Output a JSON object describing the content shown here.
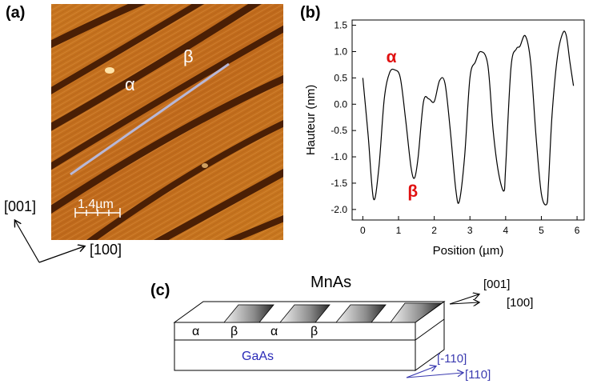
{
  "panels": {
    "a": {
      "label": "(a)",
      "scale_bar": "1.4µm",
      "alpha": "α",
      "beta": "β",
      "dir_y": "[001]",
      "dir_x": "[100]",
      "colors": {
        "background": "#c2701f",
        "trench": "#4a1f05",
        "line": "#b8b8d8"
      }
    },
    "b": {
      "label": "(b)"
    },
    "c": {
      "label": "(c)",
      "title": "MnAs",
      "substrate": "GaAs",
      "phases": [
        "α",
        "β",
        "α",
        "β"
      ],
      "dir_top_1": "[001]",
      "dir_top_2": "[100]",
      "dir_bottom_1": "[-110]",
      "dir_bottom_2": "[110]",
      "colors": {
        "gaas_text": "#2a2ab8",
        "dir_bottom": "#3a3ab0"
      }
    }
  },
  "chart_data": {
    "type": "line",
    "xlabel": "Position (µm)",
    "ylabel": "Hauteur (nm)",
    "xlim": [
      -0.3,
      6.2
    ],
    "ylim": [
      -2.2,
      1.6
    ],
    "xticks": [
      0,
      1,
      2,
      3,
      4,
      5,
      6
    ],
    "yticks": [
      -2.0,
      -1.5,
      -1.0,
      -0.5,
      0.0,
      0.5,
      1.0,
      1.5
    ],
    "series": [
      {
        "x": [
          0.0,
          0.15,
          0.3,
          0.45,
          0.6,
          0.75,
          0.9,
          1.05,
          1.2,
          1.35,
          1.45,
          1.55,
          1.7,
          1.85,
          2.0,
          2.15,
          2.3,
          2.45,
          2.6,
          2.7,
          2.85,
          3.0,
          3.15,
          3.3,
          3.5,
          3.65,
          3.8,
          3.95,
          4.0,
          4.15,
          4.3,
          4.4,
          4.55,
          4.7,
          4.85,
          5.0,
          5.15,
          5.2,
          5.3,
          5.45,
          5.6,
          5.7,
          5.8,
          5.9
        ],
        "y": [
          0.5,
          -0.6,
          -1.8,
          -1.2,
          0.1,
          0.6,
          0.65,
          0.5,
          -0.3,
          -1.2,
          -1.4,
          -1.0,
          0.05,
          0.1,
          0.05,
          0.45,
          0.4,
          -0.5,
          -1.6,
          -1.85,
          -1.0,
          0.5,
          0.8,
          1.0,
          0.75,
          -0.5,
          -1.3,
          -1.65,
          -1.2,
          0.7,
          1.05,
          1.1,
          1.3,
          0.8,
          -0.6,
          -1.7,
          -1.9,
          -1.5,
          -0.2,
          0.9,
          1.35,
          1.3,
          0.8,
          0.35
        ]
      }
    ],
    "annotations": [
      {
        "text": "α",
        "x": 0.8,
        "y": 0.9,
        "color": "#e01010"
      },
      {
        "text": "β",
        "x": 1.4,
        "y": -1.65,
        "color": "#e01010"
      }
    ]
  }
}
